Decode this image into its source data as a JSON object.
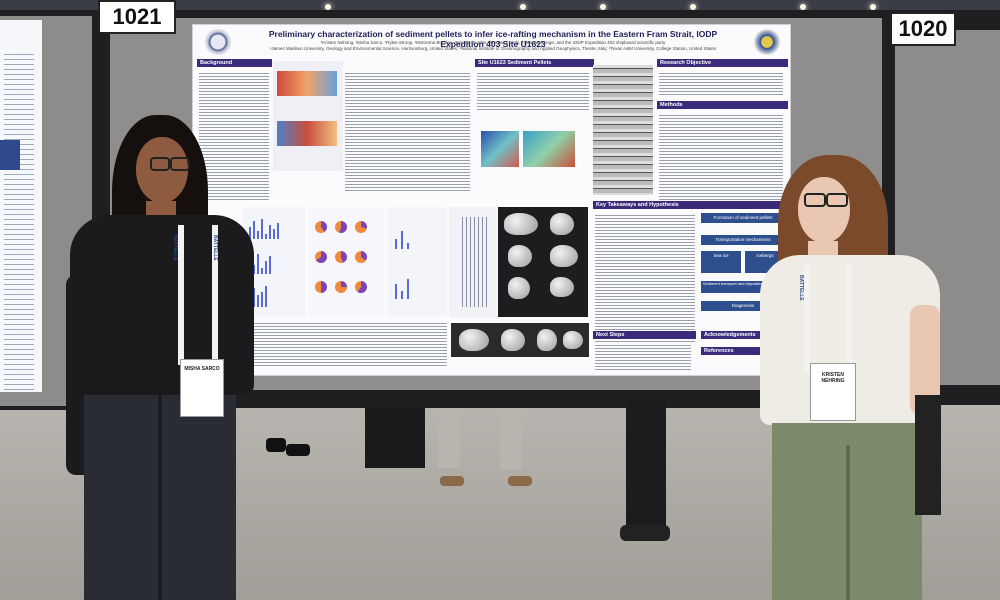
{
  "booth": {
    "left_number": "1021",
    "right_number": "1020"
  },
  "poster": {
    "title": "Preliminary characterization of sediment pellets to infer ice-rafting mechanism in the Eastern Fram Strait, IODP Expedition 403 Site U1623",
    "authors": "¹Kristen Nehring, ¹Misha Sarco, ¹Rylee Stroop, ¹McKenna Buckley, ¹Kristen St John, ²Renata Lucchi, ³Thomas Ronge, and the IODP Expedition 403 shipboard scientific party",
    "affiliations": "¹James Madison University, Geology and Environmental Science, Harrisonburg, United States; ²National Institute of Oceanography and Applied Geophysics, Trieste, Italy; ³Texas A&M University, College Station, United States",
    "sections": {
      "background": "Background",
      "site": "Site U1623 Sediment Pellets",
      "objective": "Research Objective",
      "methods": "Methods",
      "takeaways": "Key Takeaways and Hypothesis",
      "next_steps": "Next Steps",
      "acknowledgements": "Acknowledgements",
      "references": "References"
    },
    "takeaway_boxes": {
      "formation": "Formation of sediment pellets",
      "transport": "Transportation mechanisms",
      "sea_ice": "Sea ice",
      "iceberg": "Icebergs",
      "preservation": "Sediment transport and deposition processes",
      "diagenesis": "Diagenesis"
    }
  },
  "badges": {
    "left_name": "MISHA SARCO",
    "left_lanyard": "BATTELLE",
    "right_name": "KRISTEN NEHRING",
    "right_lanyard": "BATTELLE"
  },
  "colors": {
    "poster_header": "#3b2a7a",
    "poster_bg": "#fbfbfd",
    "board_frame": "#1f1f22",
    "booth_gray": "#8d8c8b"
  }
}
